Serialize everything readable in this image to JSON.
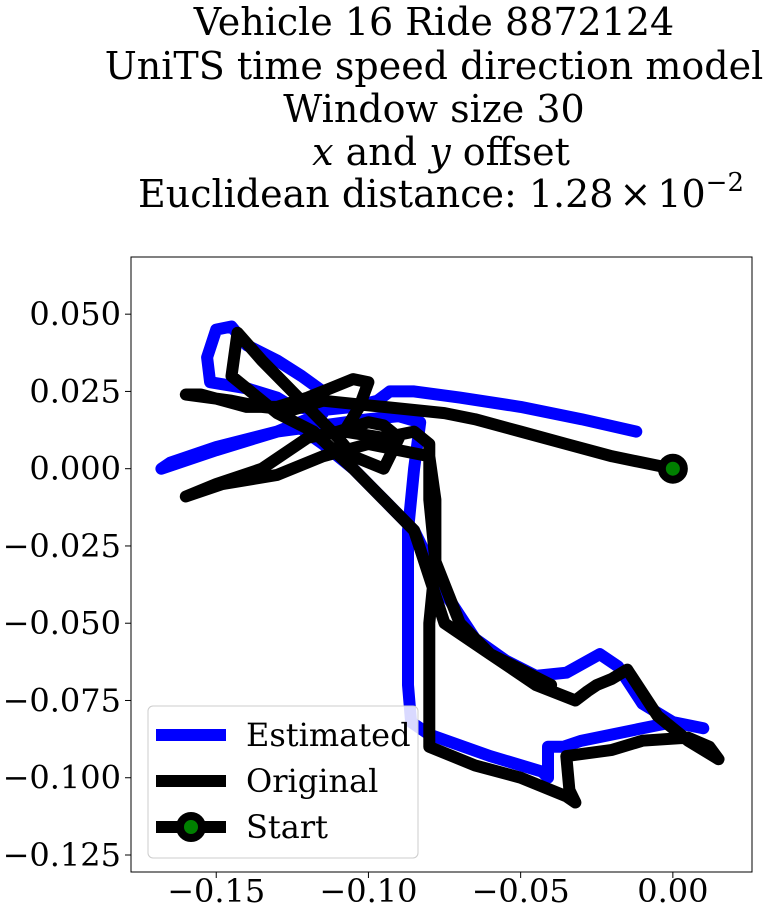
{
  "chart_data": {
    "type": "line",
    "title_lines": [
      "Vehicle 16 Ride 8872124",
      "UniTS time speed direction model",
      "Window size 30"
    ],
    "title_offset_line": {
      "var_x": "x",
      "word_and": " and ",
      "var_y": "y",
      "word_offset": " offset"
    },
    "title_distance": {
      "prefix": "Euclidean distance: ",
      "mantissa": "1.28",
      "times": "×",
      "base": "10",
      "exponent": "−2"
    },
    "xlim": [
      -0.178,
      0.026
    ],
    "ylim": [
      -0.1305,
      0.0685
    ],
    "x_ticks": [
      {
        "value": -0.15,
        "label": "−0.15"
      },
      {
        "value": -0.1,
        "label": "−0.10"
      },
      {
        "value": -0.05,
        "label": "−0.05"
      },
      {
        "value": 0.0,
        "label": "0.00"
      }
    ],
    "y_ticks": [
      {
        "value": 0.05,
        "label": "0.050"
      },
      {
        "value": 0.025,
        "label": "0.025"
      },
      {
        "value": 0.0,
        "label": "0.000"
      },
      {
        "value": -0.025,
        "label": "−0.025"
      },
      {
        "value": -0.05,
        "label": "−0.050"
      },
      {
        "value": -0.075,
        "label": "−0.075"
      },
      {
        "value": -0.1,
        "label": "−0.100"
      },
      {
        "value": -0.125,
        "label": "−0.125"
      }
    ],
    "grid": false,
    "legend_position": "lower-left",
    "series": [
      {
        "name": "Estimated",
        "color": "#0000ff",
        "points": [
          [
            -0.012,
            0.012
          ],
          [
            -0.03,
            0.016
          ],
          [
            -0.05,
            0.02
          ],
          [
            -0.07,
            0.023
          ],
          [
            -0.085,
            0.025
          ],
          [
            -0.093,
            0.025
          ],
          [
            -0.097,
            0.022
          ],
          [
            -0.105,
            0.02
          ],
          [
            -0.115,
            0.019
          ],
          [
            -0.125,
            0.02
          ],
          [
            -0.13,
            0.023
          ],
          [
            -0.14,
            0.026
          ],
          [
            -0.152,
            0.028
          ],
          [
            -0.153,
            0.036
          ],
          [
            -0.15,
            0.045
          ],
          [
            -0.145,
            0.046
          ],
          [
            -0.14,
            0.04
          ],
          [
            -0.13,
            0.035
          ],
          [
            -0.122,
            0.03
          ],
          [
            -0.115,
            0.025
          ],
          [
            -0.115,
            0.018
          ],
          [
            -0.12,
            0.016
          ],
          [
            -0.13,
            0.012
          ],
          [
            -0.15,
            0.006
          ],
          [
            -0.168,
            0.0
          ],
          [
            -0.165,
            0.002
          ],
          [
            -0.15,
            0.007
          ],
          [
            -0.13,
            0.012
          ],
          [
            -0.115,
            0.014
          ],
          [
            -0.1,
            0.016
          ],
          [
            -0.09,
            0.017
          ],
          [
            -0.083,
            0.015
          ],
          [
            -0.085,
            0.0
          ],
          [
            -0.087,
            -0.02
          ],
          [
            -0.087,
            -0.05
          ],
          [
            -0.087,
            -0.07
          ],
          [
            -0.086,
            -0.082
          ],
          [
            -0.08,
            -0.086
          ],
          [
            -0.06,
            -0.093
          ],
          [
            -0.043,
            -0.098
          ],
          [
            -0.041,
            -0.1
          ],
          [
            -0.041,
            -0.09
          ],
          [
            -0.036,
            -0.09
          ],
          [
            -0.03,
            -0.088
          ],
          [
            -0.01,
            -0.084
          ],
          [
            0.0,
            -0.082
          ],
          [
            0.01,
            -0.084
          ],
          [
            0.0,
            -0.082
          ],
          [
            -0.01,
            -0.076
          ],
          [
            -0.018,
            -0.064
          ],
          [
            -0.024,
            -0.06
          ],
          [
            -0.035,
            -0.066
          ],
          [
            -0.045,
            -0.067
          ],
          [
            -0.055,
            -0.062
          ],
          [
            -0.065,
            -0.055
          ],
          [
            -0.075,
            -0.04
          ],
          [
            -0.08,
            -0.03
          ],
          [
            -0.085,
            -0.02
          ],
          [
            -0.095,
            -0.01
          ],
          [
            -0.105,
            0.0
          ],
          [
            -0.115,
            0.008
          ],
          [
            -0.125,
            0.015
          ]
        ]
      },
      {
        "name": "Original",
        "color": "#000000",
        "points": [
          [
            0.0,
            0.0
          ],
          [
            -0.01,
            0.002
          ],
          [
            -0.02,
            0.004
          ],
          [
            -0.035,
            0.008
          ],
          [
            -0.05,
            0.012
          ],
          [
            -0.065,
            0.016
          ],
          [
            -0.075,
            0.018
          ],
          [
            -0.085,
            0.019
          ],
          [
            -0.095,
            0.02
          ],
          [
            -0.105,
            0.021
          ],
          [
            -0.115,
            0.022
          ],
          [
            -0.125,
            0.019
          ],
          [
            -0.135,
            0.02
          ],
          [
            -0.145,
            0.022
          ],
          [
            -0.16,
            0.024
          ],
          [
            -0.155,
            0.024
          ],
          [
            -0.14,
            0.02
          ],
          [
            -0.13,
            0.02
          ],
          [
            -0.12,
            0.023
          ],
          [
            -0.105,
            0.029
          ],
          [
            -0.1,
            0.028
          ],
          [
            -0.103,
            0.02
          ],
          [
            -0.108,
            0.012
          ],
          [
            -0.095,
            0.01
          ],
          [
            -0.085,
            0.012
          ],
          [
            -0.08,
            0.008
          ],
          [
            -0.08,
            -0.01
          ],
          [
            -0.078,
            -0.03
          ],
          [
            -0.07,
            -0.05
          ],
          [
            -0.06,
            -0.06
          ],
          [
            -0.045,
            -0.07
          ],
          [
            -0.032,
            -0.075
          ],
          [
            -0.028,
            -0.072
          ],
          [
            -0.025,
            -0.07
          ],
          [
            -0.02,
            -0.068
          ],
          [
            -0.015,
            -0.065
          ],
          [
            -0.005,
            -0.08
          ],
          [
            0.005,
            -0.088
          ],
          [
            0.015,
            -0.094
          ],
          [
            0.012,
            -0.09
          ],
          [
            0.005,
            -0.087
          ],
          [
            -0.01,
            -0.088
          ],
          [
            -0.02,
            -0.091
          ],
          [
            -0.035,
            -0.093
          ],
          [
            -0.034,
            -0.104
          ],
          [
            -0.032,
            -0.108
          ],
          [
            -0.035,
            -0.106
          ],
          [
            -0.05,
            -0.1
          ],
          [
            -0.065,
            -0.096
          ],
          [
            -0.08,
            -0.09
          ],
          [
            -0.08,
            -0.07
          ],
          [
            -0.08,
            -0.05
          ],
          [
            -0.078,
            -0.03
          ],
          [
            -0.078,
            -0.01
          ],
          [
            -0.08,
            0.004
          ],
          [
            -0.09,
            0.006
          ],
          [
            -0.1,
            0.008
          ],
          [
            -0.115,
            0.004
          ],
          [
            -0.13,
            -0.002
          ],
          [
            -0.148,
            -0.005
          ],
          [
            -0.16,
            -0.009
          ],
          [
            -0.15,
            -0.005
          ],
          [
            -0.135,
            0.0
          ],
          [
            -0.12,
            0.01
          ],
          [
            -0.11,
            0.012
          ],
          [
            -0.1,
            0.015
          ],
          [
            -0.095,
            0.014
          ],
          [
            -0.09,
            0.01
          ],
          [
            -0.095,
            0.0
          ],
          [
            -0.105,
            0.004
          ],
          [
            -0.11,
            0.01
          ],
          [
            -0.125,
            0.025
          ],
          [
            -0.135,
            0.035
          ],
          [
            -0.143,
            0.044
          ],
          [
            -0.145,
            0.03
          ],
          [
            -0.13,
            0.018
          ],
          [
            -0.118,
            0.012
          ],
          [
            -0.105,
            0.0
          ],
          [
            -0.095,
            -0.01
          ],
          [
            -0.085,
            -0.02
          ],
          [
            -0.08,
            -0.035
          ],
          [
            -0.075,
            -0.05
          ],
          [
            -0.06,
            -0.06
          ],
          [
            -0.04,
            -0.07
          ]
        ]
      }
    ],
    "start_point": {
      "name": "Start",
      "x": 0.0,
      "y": 0.0,
      "edge_color": "#000000",
      "face_color": "#008000"
    }
  }
}
